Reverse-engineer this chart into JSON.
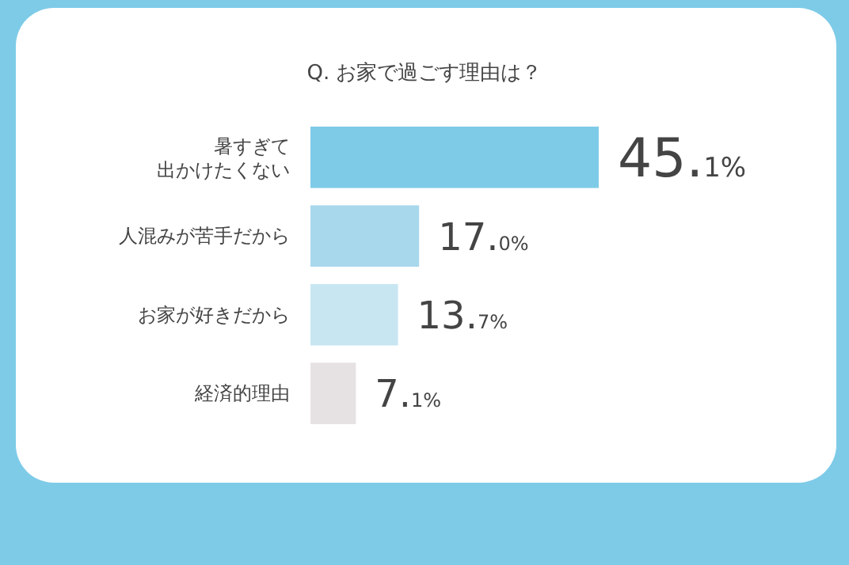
{
  "chart_data": {
    "type": "bar",
    "orientation": "horizontal",
    "title": "Q. お家で過ごす理由は？",
    "categories": [
      "暑すぎて出かけたくない",
      "人混みが苦手だから",
      "お家が好きだから",
      "経済的理由"
    ],
    "values": [
      45.1,
      17.0,
      13.7,
      7.1
    ],
    "colors": [
      "#7ecbe8",
      "#a8d8ec",
      "#c8e6f2",
      "#e6e2e4"
    ],
    "value_labels": [
      "45.1%",
      "17.0%",
      "13.7%",
      "7.1%"
    ]
  }
}
